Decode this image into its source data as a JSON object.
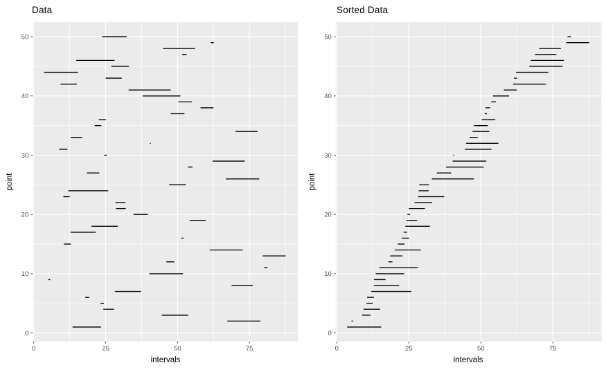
{
  "colors": {
    "figure_bg": "#FFFFFF",
    "panel_bg": "#EBEBEB",
    "gridline": "#FFFFFF",
    "segment": "#000000",
    "tick_mark": "#333333",
    "tick_label": "#4D4D4D",
    "title_text": "#000000",
    "axis_title_text": "#000000"
  },
  "chart_data": [
    {
      "type": "segment-interval",
      "title": "Data",
      "xlabel": "intervals",
      "ylabel": "point",
      "x_ticks": [
        0,
        25,
        50,
        75
      ],
      "x_minor": [
        12.5,
        37.5,
        62.5,
        87.5
      ],
      "y_ticks": [
        0,
        10,
        20,
        30,
        40,
        50
      ],
      "y_minor": [
        5,
        15,
        25,
        35,
        45
      ],
      "xlim": [
        -0.35,
        91.9
      ],
      "ylim": [
        -1.45,
        52.45
      ],
      "grid": "on",
      "y_mode": "point",
      "segments": [
        {
          "point": 1,
          "start": 13.5,
          "end": 23.4
        },
        {
          "point": 2,
          "start": 67.3,
          "end": 78.8
        },
        {
          "point": 3,
          "start": 44.5,
          "end": 53.7
        },
        {
          "point": 4,
          "start": 24.2,
          "end": 27.9
        },
        {
          "point": 5,
          "start": 23.2,
          "end": 24.4
        },
        {
          "point": 6,
          "start": 17.9,
          "end": 19.3
        },
        {
          "point": 7,
          "start": 28.2,
          "end": 37.3
        },
        {
          "point": 8,
          "start": 68.8,
          "end": 76.2
        },
        {
          "point": 9,
          "start": 5.1,
          "end": 5.7
        },
        {
          "point": 10,
          "start": 40.2,
          "end": 51.9
        },
        {
          "point": 11,
          "start": 80.1,
          "end": 81.3
        },
        {
          "point": 12,
          "start": 46.1,
          "end": 48.9
        },
        {
          "point": 13,
          "start": 79.6,
          "end": 87.6
        },
        {
          "point": 14,
          "start": 61.2,
          "end": 72.6
        },
        {
          "point": 15,
          "start": 10.5,
          "end": 12.9
        },
        {
          "point": 16,
          "start": 51.3,
          "end": 52.1
        },
        {
          "point": 17,
          "start": 12.8,
          "end": 21.6
        },
        {
          "point": 18,
          "start": 20.1,
          "end": 29.2
        },
        {
          "point": 19,
          "start": 54.2,
          "end": 59.8
        },
        {
          "point": 20,
          "start": 34.7,
          "end": 39.7
        },
        {
          "point": 21,
          "start": 28.6,
          "end": 32.0
        },
        {
          "point": 22,
          "start": 28.4,
          "end": 31.9
        },
        {
          "point": 23,
          "start": 10.3,
          "end": 12.5
        },
        {
          "point": 24,
          "start": 12.0,
          "end": 25.9
        },
        {
          "point": 25,
          "start": 47.1,
          "end": 52.9
        },
        {
          "point": 26,
          "start": 66.8,
          "end": 78.4
        },
        {
          "point": 27,
          "start": 18.5,
          "end": 22.8
        },
        {
          "point": 28,
          "start": 53.6,
          "end": 55.2
        },
        {
          "point": 29,
          "start": 62.2,
          "end": 73.4
        },
        {
          "point": 30,
          "start": 24.5,
          "end": 25.4
        },
        {
          "point": 31,
          "start": 8.8,
          "end": 11.7
        },
        {
          "point": 32,
          "start": 40.4,
          "end": 40.7
        },
        {
          "point": 33,
          "start": 12.9,
          "end": 16.9
        },
        {
          "point": 34,
          "start": 70.2,
          "end": 77.8
        },
        {
          "point": 35,
          "start": 21.2,
          "end": 23.5
        },
        {
          "point": 36,
          "start": 22.6,
          "end": 25.1
        },
        {
          "point": 37,
          "start": 47.6,
          "end": 52.4
        },
        {
          "point": 38,
          "start": 58.0,
          "end": 62.5
        },
        {
          "point": 39,
          "start": 50.3,
          "end": 55.0
        },
        {
          "point": 40,
          "start": 37.9,
          "end": 51.0
        },
        {
          "point": 41,
          "start": 33.0,
          "end": 47.6
        },
        {
          "point": 42,
          "start": 9.3,
          "end": 15.0
        },
        {
          "point": 43,
          "start": 25.0,
          "end": 30.6
        },
        {
          "point": 44,
          "start": 3.6,
          "end": 15.4
        },
        {
          "point": 45,
          "start": 27.0,
          "end": 33.1
        },
        {
          "point": 46,
          "start": 14.8,
          "end": 28.1
        },
        {
          "point": 47,
          "start": 51.6,
          "end": 53.2
        },
        {
          "point": 48,
          "start": 44.9,
          "end": 56.1
        },
        {
          "point": 49,
          "start": 61.5,
          "end": 62.6
        },
        {
          "point": 50,
          "start": 23.8,
          "end": 32.3
        }
      ]
    },
    {
      "type": "segment-interval",
      "title": "Sorted Data",
      "xlabel": "intervals",
      "ylabel": "point",
      "x_ticks": [
        0,
        25,
        50,
        75
      ],
      "x_minor": [
        12.5,
        37.5,
        62.5,
        87.5
      ],
      "y_ticks": [
        0,
        10,
        20,
        30,
        40,
        50
      ],
      "y_minor": [
        5,
        15,
        25,
        35,
        45
      ],
      "xlim": [
        -0.35,
        91.9
      ],
      "ylim": [
        -1.45,
        52.45
      ],
      "grid": "on",
      "y_mode": "rank",
      "sort": "interval start ascending (bottom to top)",
      "sorted_order": [
        44,
        9,
        31,
        42,
        23,
        15,
        24,
        17,
        33,
        1,
        46,
        6,
        27,
        18,
        35,
        36,
        5,
        50,
        4,
        30,
        43,
        45,
        7,
        22,
        21,
        41,
        20,
        40,
        10,
        32,
        3,
        48,
        12,
        25,
        37,
        39,
        16,
        47,
        28,
        19,
        38,
        14,
        49,
        29,
        26,
        2,
        8,
        34,
        13,
        11
      ]
    }
  ]
}
